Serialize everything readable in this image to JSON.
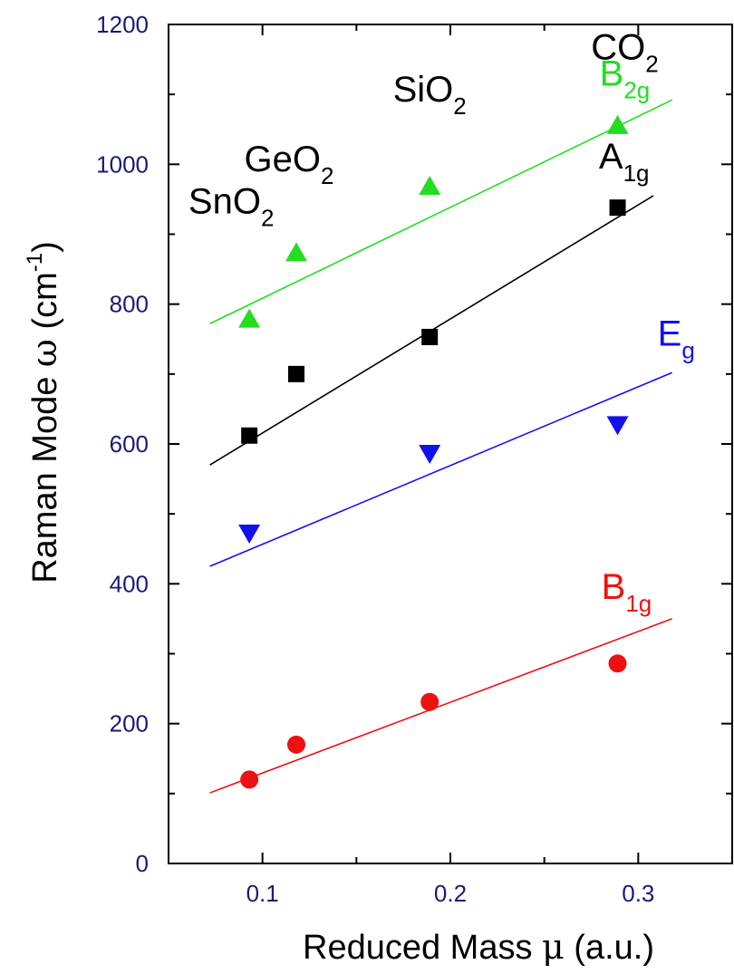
{
  "chart_data": {
    "type": "scatter",
    "xlabel": {
      "prefix": "Reduced Mass ",
      "symbol": "μ",
      "suffix": " (a.u.)"
    },
    "ylabel": {
      "prefix": "Raman Mode ",
      "symbol": "ω",
      "unit_main": " (cm",
      "unit_sup": "-1",
      "unit_close": ")"
    },
    "xlim": [
      0.05,
      0.35
    ],
    "ylim": [
      0,
      1200
    ],
    "xticks": [
      "0.1",
      "0.2",
      "0.3"
    ],
    "yticks": [
      "0",
      "200",
      "400",
      "600",
      "800",
      "1000",
      "1200"
    ],
    "x_tick_values": [
      0.1,
      0.2,
      0.3
    ],
    "y_tick_values": [
      0,
      200,
      400,
      600,
      800,
      1000,
      1200
    ],
    "x_minor_ticks": [
      0.05,
      0.15,
      0.25,
      0.35
    ],
    "y_minor_ticks": [
      100,
      300,
      500,
      700,
      900,
      1100
    ],
    "grid": false,
    "compounds": [
      {
        "base": "SnO",
        "sub": "2",
        "x": 0.093,
        "label_y": 930
      },
      {
        "base": "GeO",
        "sub": "2",
        "x": 0.118,
        "label_y": 990
      },
      {
        "base": "SiO",
        "sub": "2",
        "x": 0.189,
        "label_y": 1090
      },
      {
        "base": "CO",
        "sub": "2",
        "x": 0.288,
        "label_y": 1150
      }
    ],
    "series": [
      {
        "name": {
          "base": "B",
          "sub": "2g"
        },
        "color": "#22dd22",
        "marker": "triangle-up",
        "points": [
          [
            0.093,
            778
          ],
          [
            0.118,
            873
          ],
          [
            0.189,
            968
          ],
          [
            0.289,
            1055
          ]
        ],
        "fit": [
          [
            0.072,
            772
          ],
          [
            0.318,
            1092
          ]
        ]
      },
      {
        "name": {
          "base": "A",
          "sub": "1g"
        },
        "color": "#000000",
        "marker": "square",
        "points": [
          [
            0.093,
            612
          ],
          [
            0.118,
            700
          ],
          [
            0.189,
            753
          ],
          [
            0.289,
            938
          ]
        ],
        "fit": [
          [
            0.072,
            570
          ],
          [
            0.308,
            955
          ]
        ]
      },
      {
        "name": {
          "base": "E",
          "sub": "g"
        },
        "color": "#1111ee",
        "marker": "triangle-down",
        "points": [
          [
            0.093,
            473
          ],
          [
            0.189,
            587
          ],
          [
            0.289,
            628
          ]
        ],
        "fit": [
          [
            0.072,
            425
          ],
          [
            0.318,
            702
          ]
        ]
      },
      {
        "name": {
          "base": "B",
          "sub": "1g"
        },
        "color": "#ee1111",
        "marker": "circle",
        "points": [
          [
            0.093,
            120
          ],
          [
            0.118,
            170
          ],
          [
            0.189,
            231
          ],
          [
            0.289,
            286
          ]
        ],
        "fit": [
          [
            0.072,
            101
          ],
          [
            0.318,
            350
          ]
        ]
      }
    ]
  }
}
